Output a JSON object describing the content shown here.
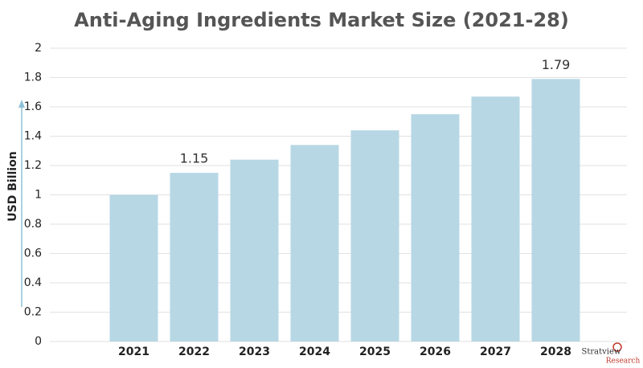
{
  "chart_data": {
    "type": "bar",
    "title": "Anti-Aging Ingredients Market Size (2021-28)",
    "y_label": "USD Billion",
    "categories": [
      "2021",
      "2022",
      "2023",
      "2024",
      "2025",
      "2026",
      "2027",
      "2028"
    ],
    "values": [
      1.0,
      1.15,
      1.24,
      1.34,
      1.44,
      1.55,
      1.67,
      1.79
    ],
    "value_labels": [
      null,
      "1.15",
      null,
      null,
      null,
      null,
      null,
      "1.79"
    ],
    "color": "#b7d7e4",
    "ylim": [
      0,
      2
    ],
    "yticks": [
      0,
      0.2,
      0.4,
      0.6,
      0.8,
      1,
      1.2,
      1.4,
      1.6,
      1.8,
      2
    ],
    "grid": true
  },
  "logo": {
    "name": "Stratview",
    "sub": "Research"
  }
}
